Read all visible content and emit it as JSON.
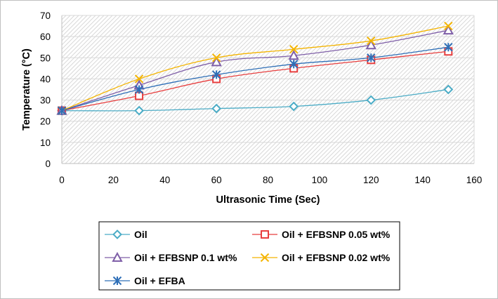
{
  "chart_data": {
    "type": "line",
    "xlabel": "Ultrasonic Time (Sec)",
    "ylabel": "Temperature (°C)",
    "xlim": [
      0,
      160
    ],
    "ylim": [
      0,
      70
    ],
    "x_ticks": [
      0,
      20,
      40,
      60,
      80,
      100,
      120,
      140,
      160
    ],
    "y_ticks": [
      0,
      10,
      20,
      30,
      40,
      50,
      60,
      70
    ],
    "grid": "horizontal",
    "plot_background": "diagonal-hatch",
    "legend_position": "bottom",
    "x": [
      0,
      30,
      60,
      90,
      120,
      150
    ],
    "series": [
      {
        "name": "Oil",
        "values": [
          25,
          25,
          26,
          27,
          30,
          35
        ],
        "color": "#4bacc6",
        "marker": "diamond"
      },
      {
        "name": "Oil + EFBSNP 0.05 wt%",
        "values": [
          25,
          32,
          40,
          45,
          49,
          53
        ],
        "color": "#e83f3f",
        "marker": "square"
      },
      {
        "name": "Oil + EFBSNP 0.1 wt%",
        "values": [
          25,
          37,
          48,
          51,
          56,
          63
        ],
        "color": "#7f5fa8",
        "marker": "triangle"
      },
      {
        "name": "Oil + EFBSNP 0.02 wt%",
        "values": [
          25,
          40,
          50,
          54,
          58,
          65
        ],
        "color": "#f4b400",
        "marker": "x"
      },
      {
        "name": "Oil + EFBA",
        "values": [
          25,
          35,
          42,
          47,
          50,
          55
        ],
        "color": "#2e6fb7",
        "marker": "star"
      }
    ]
  }
}
